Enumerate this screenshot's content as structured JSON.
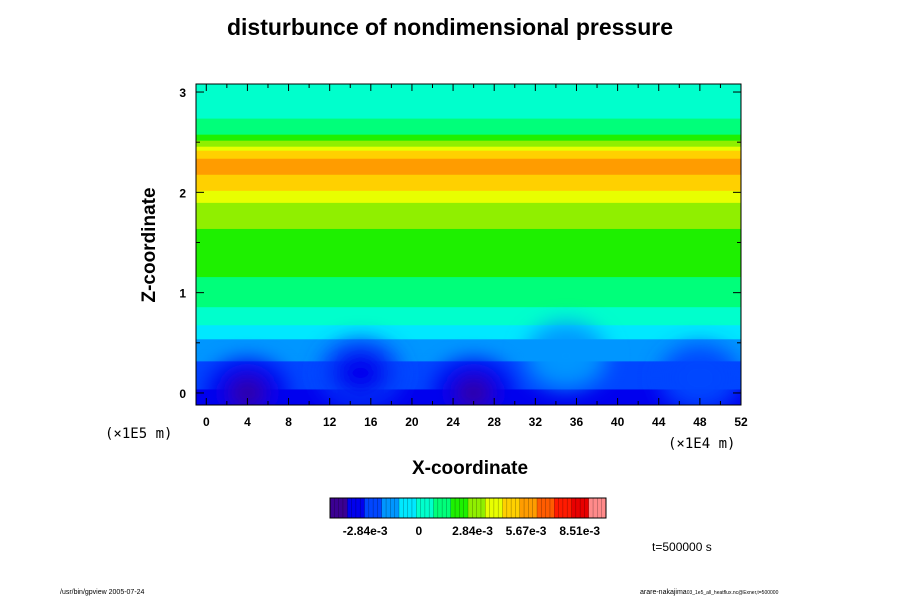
{
  "chart_data": {
    "type": "heatmap",
    "title": "disturbunce of nondimensional pressure",
    "xlabel": "X-coordinate",
    "ylabel": "Z-coordinate",
    "x_scale_label": "(×1E4 m)",
    "y_scale_label": "(×1E5 m)",
    "xlim": [
      -1,
      52
    ],
    "ylim": [
      -0.12,
      3.08
    ],
    "x_ticks": [
      "0",
      "4",
      "8",
      "12",
      "16",
      "20",
      "24",
      "28",
      "32",
      "36",
      "40",
      "44",
      "48",
      "52"
    ],
    "y_ticks": [
      "0",
      "1",
      "2",
      "3"
    ],
    "colorbar": {
      "range": [
        -0.0047,
        0.0099
      ],
      "tick_labels": [
        "-2.84e-3",
        "0",
        "2.84e-3",
        "5.67e-3",
        "8.51e-3"
      ],
      "tick_values": [
        -0.00284,
        0,
        0.00284,
        0.00567,
        0.00851
      ],
      "colors": [
        "#3b0092",
        "#0000ee",
        "#0046ff",
        "#0096ff",
        "#00e8ff",
        "#00ffcc",
        "#00ff7a",
        "#1ef000",
        "#90ef00",
        "#e8ff00",
        "#ffd000",
        "#ff9c00",
        "#ff5c00",
        "#ff1a00",
        "#e80000",
        "#ff8a8a"
      ]
    },
    "vertical_profile": {
      "z": [
        0.0,
        0.25,
        0.55,
        0.7,
        0.95,
        1.3,
        1.65,
        1.92,
        2.05,
        2.2,
        2.3,
        2.42,
        2.52,
        2.65,
        2.85,
        3.05
      ],
      "value": [
        -0.003,
        -0.0023,
        -0.001,
        0.0,
        0.0012,
        0.002,
        0.0026,
        0.0036,
        0.0046,
        0.0054,
        0.0056,
        0.0046,
        0.0024,
        0.001,
        0.0005,
        0.0003
      ]
    },
    "low_centers": [
      {
        "x": 4,
        "z": 0.0,
        "value": -0.0043
      },
      {
        "x": 15,
        "z": 0.2,
        "value": -0.0036
      },
      {
        "x": 26,
        "z": 0.0,
        "value": -0.0044
      },
      {
        "x": 35,
        "z": 0.37,
        "value": -0.0018
      },
      {
        "x": 48,
        "z": 0.15,
        "value": -0.0026
      }
    ],
    "time_label": "t=500000 s"
  },
  "footer": {
    "left": "/usr/bin/gpview 2005-07-24",
    "right": "arare-nakajima",
    "right_small": "03_1e5_all_heatflux.nc@Exner,t=500000"
  }
}
